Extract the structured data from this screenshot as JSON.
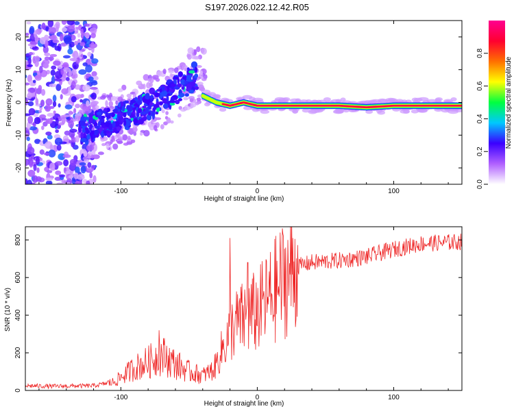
{
  "title": "S197.2026.022.12.42.R05",
  "chart_data": [
    {
      "type": "heatmap",
      "xlabel": "Height of straight line (km)",
      "ylabel": "Frequency (Hz)",
      "xlim": [
        -170,
        150
      ],
      "ylim": [
        -25,
        25
      ],
      "xticks": [
        -100,
        0,
        100
      ],
      "yticks": [
        -20,
        -10,
        0,
        10,
        20
      ],
      "colorbar": {
        "label": "Normalized spectral amplitude",
        "range": [
          0,
          1
        ],
        "ticks": [
          "0.0",
          "0.2",
          "0.4",
          "0.6",
          "0.8"
        ],
        "colormap": [
          "#ffffff",
          "#b060ff",
          "#3a00ff",
          "#00c8ff",
          "#00ff40",
          "#ffff00",
          "#ff7000",
          "#ff0030",
          "#ff0090"
        ]
      },
      "ridge": {
        "scatter_region_km": [
          -170,
          -120
        ],
        "rising_track": [
          [
            -130,
            -9
          ],
          [
            -110,
            -6
          ],
          [
            -90,
            -3
          ],
          [
            -70,
            1
          ],
          [
            -55,
            5
          ],
          [
            -45,
            8
          ]
        ],
        "flat_track": [
          [
            -40,
            2
          ],
          [
            -30,
            0
          ],
          [
            -20,
            -1
          ],
          [
            -10,
            0
          ],
          [
            0,
            -1
          ],
          [
            20,
            -1
          ],
          [
            60,
            -1
          ],
          [
            80,
            -1.5
          ],
          [
            100,
            -1
          ],
          [
            150,
            -1
          ]
        ]
      },
      "color": "#b060ff"
    },
    {
      "type": "line",
      "xlabel": "Height of straight line (km)",
      "ylabel": "SNR (10 * v/v)",
      "xlim": [
        -170,
        150
      ],
      "ylim": [
        0,
        870
      ],
      "xticks": [
        -100,
        0,
        100
      ],
      "yticks": [
        0,
        200,
        400,
        600,
        800
      ],
      "color": "#ee2222",
      "trend": [
        [
          -170,
          25
        ],
        [
          -150,
          22
        ],
        [
          -120,
          25
        ],
        [
          -105,
          45
        ],
        [
          -90,
          120
        ],
        [
          -80,
          150
        ],
        [
          -70,
          190
        ],
        [
          -60,
          140
        ],
        [
          -50,
          100
        ],
        [
          -40,
          80
        ],
        [
          -32,
          110
        ],
        [
          -25,
          230
        ],
        [
          -18,
          340
        ],
        [
          -10,
          380
        ],
        [
          0,
          420
        ],
        [
          10,
          500
        ],
        [
          20,
          600
        ],
        [
          30,
          660
        ],
        [
          40,
          680
        ],
        [
          60,
          690
        ],
        [
          80,
          710
        ],
        [
          100,
          750
        ],
        [
          120,
          780
        ],
        [
          150,
          790
        ]
      ],
      "peaks": [
        [
          -72,
          320
        ],
        [
          -20,
          810
        ],
        [
          -7,
          680
        ]
      ]
    }
  ]
}
